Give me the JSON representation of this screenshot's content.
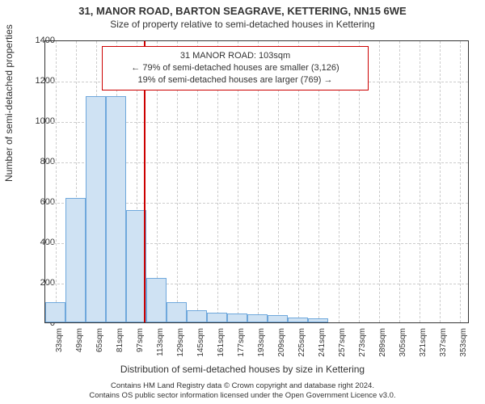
{
  "title": "31, MANOR ROAD, BARTON SEAGRAVE, KETTERING, NN15 6WE",
  "subtitle": "Size of property relative to semi-detached houses in Kettering",
  "ylabel": "Number of semi-detached properties",
  "xlabel": "Distribution of semi-detached houses by size in Kettering",
  "chart": {
    "type": "bar",
    "ylim": [
      0,
      1400
    ],
    "yticks": [
      0,
      200,
      400,
      600,
      800,
      1000,
      1200,
      1400
    ],
    "xcats": [
      "33sqm",
      "49sqm",
      "65sqm",
      "81sqm",
      "97sqm",
      "113sqm",
      "129sqm",
      "145sqm",
      "161sqm",
      "177sqm",
      "193sqm",
      "209sqm",
      "225sqm",
      "241sqm",
      "257sqm",
      "273sqm",
      "289sqm",
      "305sqm",
      "321sqm",
      "337sqm",
      "353sqm"
    ],
    "data_start": 33,
    "data_end": 233,
    "values": [
      100,
      615,
      1120,
      1120,
      555,
      220,
      100,
      60,
      50,
      45,
      40,
      35,
      25,
      20
    ],
    "bar_fill": "#cfe2f3",
    "bar_stroke": "#6fa8dc",
    "grid_color": "#cccccc",
    "background_color": "#ffffff",
    "axis_color": "#333333",
    "marker_value": 103,
    "marker_color": "#cc0000",
    "bar_width_ratio": 1.0
  },
  "annotation": {
    "line1": "31 MANOR ROAD: 103sqm",
    "line2": "← 79% of semi-detached houses are smaller (3,126)",
    "line3": "19% of semi-detached houses are larger (769) →",
    "border_color": "#cc0000",
    "fontsize": 11
  },
  "footer": {
    "line1": "Contains HM Land Registry data © Crown copyright and database right 2024.",
    "line2": "Contains OS public sector information licensed under the Open Government Licence v3.0."
  },
  "style": {
    "title_fontsize": 13,
    "subtitle_fontsize": 12,
    "label_fontsize": 12,
    "tick_fontsize": 11,
    "xtick_fontsize": 10,
    "footer_fontsize": 9.5,
    "text_color": "#333333"
  }
}
